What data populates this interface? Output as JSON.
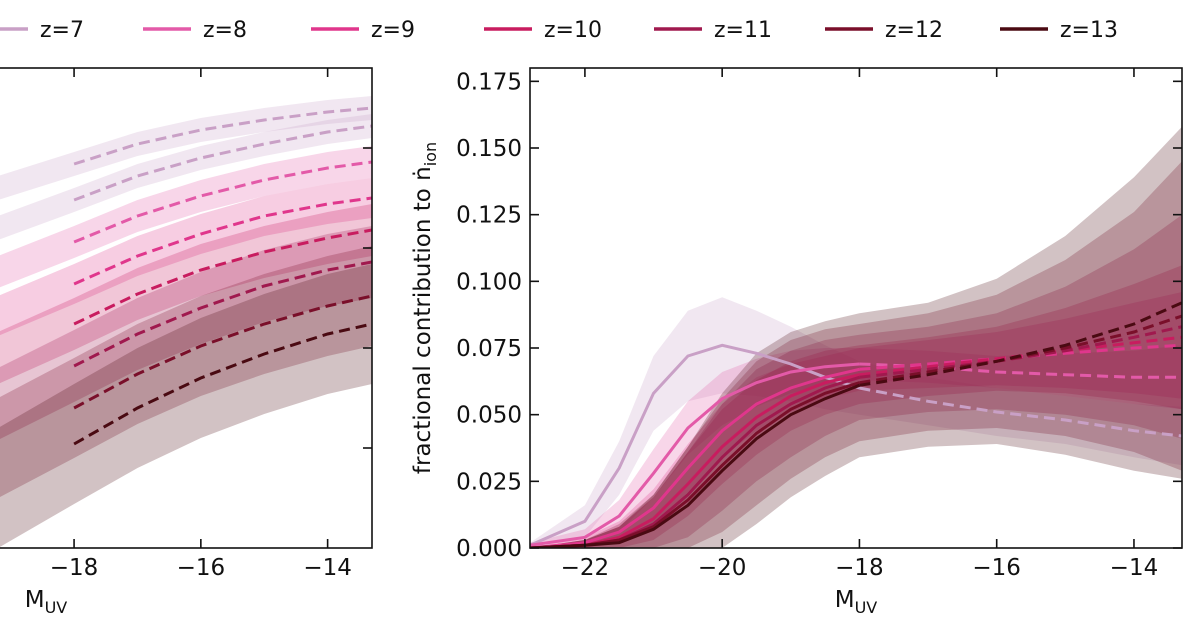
{
  "legend": {
    "placement": "top, single row",
    "entries": [
      {
        "label": "z=7",
        "color": "#c9a0c6"
      },
      {
        "label": "z=8",
        "color": "#e35aa8"
      },
      {
        "label": "z=9",
        "color": "#e0368c"
      },
      {
        "label": "z=10",
        "color": "#c81c5f"
      },
      {
        "label": "z=11",
        "color": "#a0194e"
      },
      {
        "label": "z=12",
        "color": "#7a0f2a"
      },
      {
        "label": "z=13",
        "color": "#4a0a12"
      }
    ]
  },
  "chart_data": [
    {
      "type": "line",
      "panel": "left",
      "xlabel": "M",
      "xlabel_sub": "UV",
      "ylabel": "",
      "xlim": [
        -19.2,
        -13.3
      ],
      "x_ticks": [
        {
          "value": -18,
          "label": "−18"
        },
        {
          "value": -16,
          "label": "−16"
        },
        {
          "value": -14,
          "label": "−14"
        }
      ],
      "y_ticks_unlabeled": [
        0.05,
        0.1,
        0.15,
        0.2
      ],
      "ylim": [
        0,
        0.24
      ],
      "line_styles": "solid for brighter magnitudes, dashed for fainter magnitudes, shaded uncertainty bands",
      "series": [
        {
          "name": "z=7",
          "color": "#c9a0c6",
          "x": [
            -19.2,
            -18,
            -17,
            -16,
            -15,
            -14,
            -13.3
          ],
          "y": [
            0.18,
            0.192,
            0.202,
            0.209,
            0.214,
            0.218,
            0.22
          ],
          "band": 0.006
        },
        {
          "name": "z=7b",
          "color": "#c9a0c6",
          "x": [
            -19.2,
            -18,
            -17,
            -16,
            -15,
            -14,
            -13.3
          ],
          "y": [
            0.16,
            0.174,
            0.186,
            0.195,
            0.202,
            0.208,
            0.211
          ],
          "band": 0.006
        },
        {
          "name": "z=8",
          "color": "#e35aa8",
          "x": [
            -19.2,
            -18,
            -17,
            -16,
            -15,
            -14,
            -13.3
          ],
          "y": [
            0.138,
            0.153,
            0.166,
            0.176,
            0.184,
            0.19,
            0.193
          ],
          "band": 0.008
        },
        {
          "name": "z=9",
          "color": "#e0368c",
          "x": [
            -19.2,
            -18,
            -17,
            -16,
            -15,
            -14,
            -13.3
          ],
          "y": [
            0.116,
            0.132,
            0.146,
            0.157,
            0.166,
            0.172,
            0.175
          ],
          "band": 0.01
        },
        {
          "name": "z=10",
          "color": "#c81c5f",
          "x": [
            -19.2,
            -18,
            -17,
            -16,
            -15,
            -14,
            -13.3
          ],
          "y": [
            0.095,
            0.112,
            0.127,
            0.139,
            0.148,
            0.155,
            0.159
          ],
          "band": 0.013
        },
        {
          "name": "z=11",
          "color": "#a0194e",
          "x": [
            -19.2,
            -18,
            -17,
            -16,
            -15,
            -14,
            -13.3
          ],
          "y": [
            0.072,
            0.091,
            0.107,
            0.12,
            0.131,
            0.139,
            0.143
          ],
          "band": 0.018
        },
        {
          "name": "z=12",
          "color": "#7a0f2a",
          "x": [
            -19.2,
            -18,
            -17,
            -16,
            -15,
            -14,
            -13.3
          ],
          "y": [
            0.05,
            0.07,
            0.087,
            0.101,
            0.112,
            0.121,
            0.126
          ],
          "band": 0.025
        },
        {
          "name": "z=13",
          "color": "#4a0a12",
          "x": [
            -19.2,
            -18,
            -17,
            -16,
            -15,
            -14,
            -13.3
          ],
          "y": [
            0.03,
            0.052,
            0.07,
            0.085,
            0.097,
            0.107,
            0.112
          ],
          "band": 0.03
        }
      ]
    },
    {
      "type": "line",
      "panel": "right",
      "xlabel": "M",
      "xlabel_sub": "UV",
      "ylabel": "fractional contribution to ṅ",
      "ylabel_sub": "ion",
      "xlim": [
        -22.8,
        -13.3
      ],
      "ylim": [
        0,
        0.18
      ],
      "x_ticks": [
        {
          "value": -22,
          "label": "−22"
        },
        {
          "value": -20,
          "label": "−20"
        },
        {
          "value": -18,
          "label": "−18"
        },
        {
          "value": -16,
          "label": "−16"
        },
        {
          "value": -14,
          "label": "−14"
        }
      ],
      "y_ticks": [
        {
          "value": 0.0,
          "label": "0.000"
        },
        {
          "value": 0.025,
          "label": "0.025"
        },
        {
          "value": 0.05,
          "label": "0.050"
        },
        {
          "value": 0.075,
          "label": "0.075"
        },
        {
          "value": 0.1,
          "label": "0.100"
        },
        {
          "value": 0.125,
          "label": "0.125"
        },
        {
          "value": 0.15,
          "label": "0.150"
        },
        {
          "value": 0.175,
          "label": "0.175"
        }
      ],
      "line_styles": "solid for M_UV < -18, dashed for M_UV > -18, shaded uncertainty bands",
      "series": [
        {
          "name": "z=7",
          "color": "#c9a0c6",
          "x": [
            -22.8,
            -22,
            -21.5,
            -21,
            -20.5,
            -20,
            -19.5,
            -19,
            -18.5,
            -18,
            -17,
            -16,
            -15,
            -14,
            -13.3
          ],
          "y": [
            0.001,
            0.01,
            0.03,
            0.058,
            0.072,
            0.076,
            0.073,
            0.069,
            0.064,
            0.06,
            0.055,
            0.051,
            0.048,
            0.044,
            0.042
          ],
          "band": [
            0.001,
            0.006,
            0.01,
            0.014,
            0.017,
            0.018,
            0.016,
            0.014,
            0.012,
            0.01,
            0.009,
            0.009,
            0.009,
            0.01,
            0.011
          ]
        },
        {
          "name": "z=8",
          "color": "#e35aa8",
          "x": [
            -22.8,
            -22,
            -21.5,
            -21,
            -20.5,
            -20,
            -19.5,
            -19,
            -18.5,
            -18,
            -17,
            -16,
            -15,
            -14,
            -13.3
          ],
          "y": [
            0.001,
            0.004,
            0.012,
            0.028,
            0.045,
            0.056,
            0.062,
            0.066,
            0.068,
            0.069,
            0.068,
            0.066,
            0.065,
            0.064,
            0.064
          ],
          "band": [
            0.001,
            0.003,
            0.006,
            0.009,
            0.01,
            0.01,
            0.009,
            0.008,
            0.007,
            0.006,
            0.006,
            0.006,
            0.008,
            0.01,
            0.012
          ]
        },
        {
          "name": "z=9",
          "color": "#e0368c",
          "x": [
            -22.8,
            -22,
            -21.5,
            -21,
            -20.5,
            -20,
            -19.5,
            -19,
            -18.5,
            -18,
            -17,
            -16,
            -15,
            -14,
            -13.3
          ],
          "y": [
            0.0,
            0.002,
            0.006,
            0.015,
            0.03,
            0.044,
            0.054,
            0.06,
            0.064,
            0.067,
            0.069,
            0.071,
            0.073,
            0.075,
            0.076
          ],
          "band": [
            0.0,
            0.002,
            0.004,
            0.007,
            0.009,
            0.01,
            0.01,
            0.009,
            0.008,
            0.008,
            0.009,
            0.01,
            0.013,
            0.017,
            0.02
          ]
        },
        {
          "name": "z=10",
          "color": "#c81c5f",
          "x": [
            -22.8,
            -22,
            -21.5,
            -21,
            -20.5,
            -20,
            -19.5,
            -19,
            -18.5,
            -18,
            -17,
            -16,
            -15,
            -14,
            -13.3
          ],
          "y": [
            0.0,
            0.001,
            0.004,
            0.011,
            0.024,
            0.038,
            0.049,
            0.057,
            0.062,
            0.065,
            0.068,
            0.071,
            0.074,
            0.077,
            0.079
          ],
          "band": [
            0.0,
            0.002,
            0.004,
            0.008,
            0.012,
            0.014,
            0.014,
            0.013,
            0.012,
            0.011,
            0.011,
            0.012,
            0.016,
            0.022,
            0.027
          ]
        },
        {
          "name": "z=11",
          "color": "#a0194e",
          "x": [
            -22.8,
            -22,
            -21.5,
            -21,
            -20.5,
            -20,
            -19.5,
            -19,
            -18.5,
            -18,
            -17,
            -16,
            -15,
            -14,
            -13.3
          ],
          "y": [
            0.0,
            0.001,
            0.003,
            0.009,
            0.02,
            0.034,
            0.046,
            0.054,
            0.06,
            0.064,
            0.067,
            0.07,
            0.074,
            0.079,
            0.083
          ],
          "band": [
            0.0,
            0.002,
            0.005,
            0.01,
            0.016,
            0.02,
            0.021,
            0.02,
            0.018,
            0.016,
            0.016,
            0.018,
            0.024,
            0.033,
            0.042
          ]
        },
        {
          "name": "z=12",
          "color": "#7a0f2a",
          "x": [
            -22.8,
            -22,
            -21.5,
            -21,
            -20.5,
            -20,
            -19.5,
            -19,
            -18.5,
            -18,
            -17,
            -16,
            -15,
            -14,
            -13.3
          ],
          "y": [
            0.0,
            0.001,
            0.003,
            0.008,
            0.018,
            0.031,
            0.043,
            0.052,
            0.058,
            0.062,
            0.066,
            0.07,
            0.075,
            0.081,
            0.087
          ],
          "band": [
            0.0,
            0.002,
            0.006,
            0.012,
            0.02,
            0.025,
            0.027,
            0.026,
            0.024,
            0.022,
            0.022,
            0.025,
            0.033,
            0.045,
            0.058
          ]
        },
        {
          "name": "z=13",
          "color": "#4a0a12",
          "x": [
            -22.8,
            -22,
            -21.5,
            -21,
            -20.5,
            -20,
            -19.5,
            -19,
            -18.5,
            -18,
            -17,
            -16,
            -15,
            -14,
            -13.3
          ],
          "y": [
            0.0,
            0.001,
            0.002,
            0.007,
            0.016,
            0.029,
            0.041,
            0.05,
            0.056,
            0.061,
            0.065,
            0.07,
            0.076,
            0.084,
            0.092
          ],
          "band": [
            0.0,
            0.002,
            0.006,
            0.013,
            0.022,
            0.029,
            0.032,
            0.031,
            0.029,
            0.027,
            0.027,
            0.031,
            0.041,
            0.055,
            0.066
          ]
        }
      ]
    }
  ]
}
